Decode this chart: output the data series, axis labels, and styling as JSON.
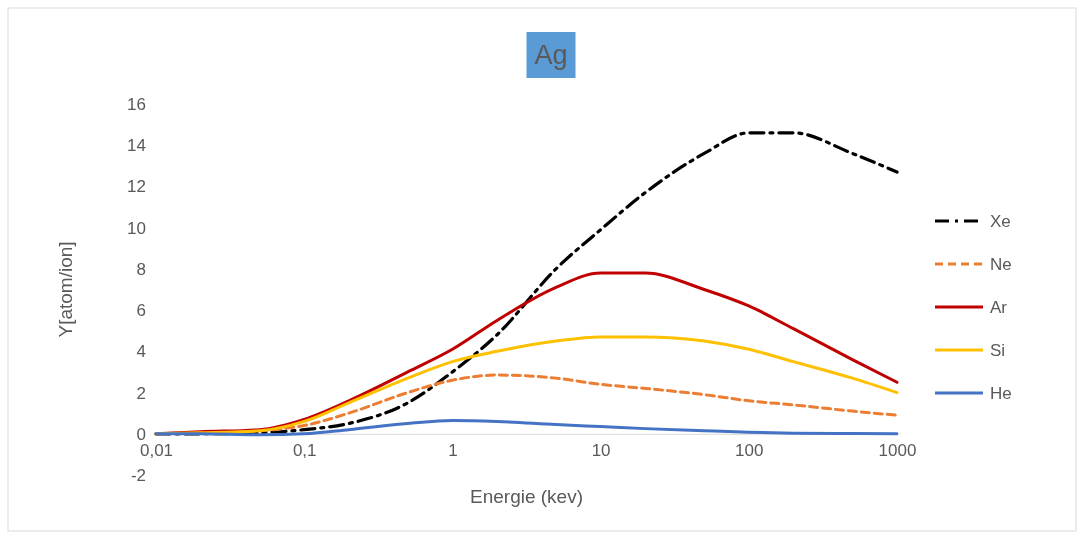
{
  "chart_data": {
    "type": "line",
    "title": "Ag",
    "xlabel": "Energie (kev)",
    "ylabel": "Y[atom/ion]",
    "log": "x",
    "x": [
      0.01,
      0.02,
      0.05,
      0.1,
      0.2,
      0.5,
      1,
      2,
      5,
      10,
      20,
      50,
      100,
      200,
      500,
      1000
    ],
    "xlim": [
      0.01,
      1000
    ],
    "xticks": [
      {
        "value": 0.01,
        "label": "0,01"
      },
      {
        "value": 0.1,
        "label": "0,1"
      },
      1,
      10,
      100,
      1000
    ],
    "ylim": [
      -2,
      16
    ],
    "yticks": [
      -2,
      0,
      2,
      4,
      6,
      8,
      10,
      12,
      14,
      16
    ],
    "grid": false,
    "legend": "right",
    "marker": "none",
    "series": [
      {
        "name": "Xe",
        "color": "#000000",
        "line_style": "dashdot",
        "values": [
          0,
          0,
          0.05,
          0.2,
          0.5,
          1.5,
          3,
          4.8,
          8,
          9.9,
          11.7,
          13.6,
          14.6,
          14.6,
          13.6,
          12.7
        ]
      },
      {
        "name": "Ne",
        "color": "#ed7d31",
        "line_style": "dashed",
        "values": [
          0,
          0.05,
          0.15,
          0.4,
          1,
          2,
          2.6,
          2.85,
          2.7,
          2.4,
          2.2,
          1.9,
          1.6,
          1.4,
          1.1,
          0.9
        ]
      },
      {
        "name": "Ar",
        "color": "#c00000",
        "line_style": "solid",
        "values": [
          0,
          0.1,
          0.2,
          0.7,
          1.6,
          3,
          4.1,
          5.5,
          7.1,
          7.8,
          7.8,
          7,
          6.2,
          5.1,
          3.6,
          2.5
        ]
      },
      {
        "name": "Si",
        "color": "#ffc000",
        "line_style": "solid",
        "values": [
          0,
          0.05,
          0.15,
          0.6,
          1.5,
          2.7,
          3.5,
          4,
          4.5,
          4.7,
          4.7,
          4.5,
          4.1,
          3.5,
          2.7,
          2
        ]
      },
      {
        "name": "He",
        "color": "#4472c4",
        "line_style": "solid",
        "values": [
          0,
          0,
          -0.05,
          0,
          0.2,
          0.5,
          0.65,
          0.6,
          0.45,
          0.35,
          0.25,
          0.15,
          0.08,
          0.03,
          0.01,
          0
        ]
      }
    ]
  }
}
